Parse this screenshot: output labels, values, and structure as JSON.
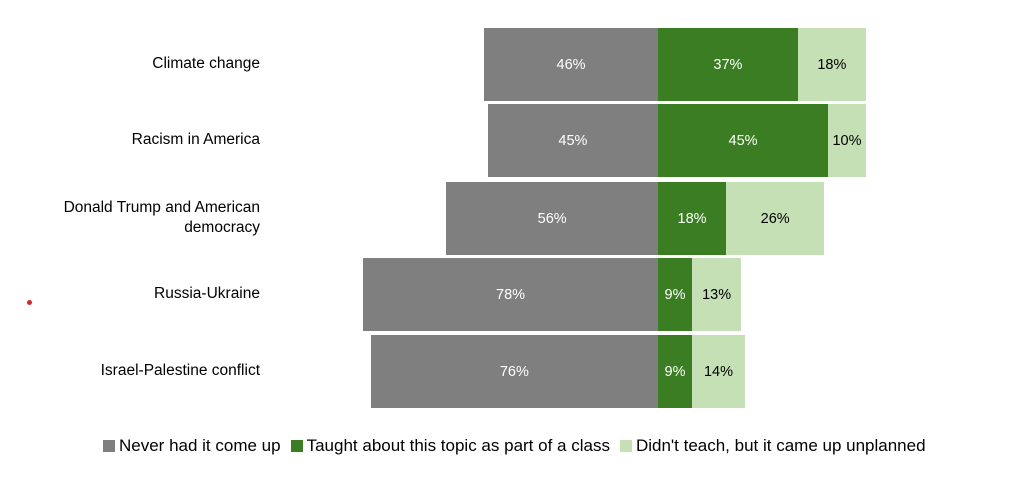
{
  "chart_data": {
    "type": "bar",
    "orientation": "horizontal",
    "stacked": "diverging",
    "categories": [
      "Climate change",
      "Racism in America",
      "Donald Trump and American democracy",
      "Russia-Ukraine",
      "Israel-Palestine conflict"
    ],
    "series": [
      {
        "name": "Never had it come up",
        "color": "#7f7f7f",
        "direction": "left",
        "values": [
          46,
          45,
          56,
          78,
          76
        ]
      },
      {
        "name": "Taught about this topic as part of a class",
        "color": "#3a7d22",
        "direction": "right",
        "values": [
          37,
          45,
          18,
          9,
          9
        ]
      },
      {
        "name": "Didn't teach, but it came up unplanned",
        "color": "#c5e0b4",
        "direction": "right",
        "values": [
          18,
          10,
          26,
          13,
          14
        ]
      }
    ],
    "value_suffix": "%",
    "legend_position": "bottom",
    "grid": false
  }
}
